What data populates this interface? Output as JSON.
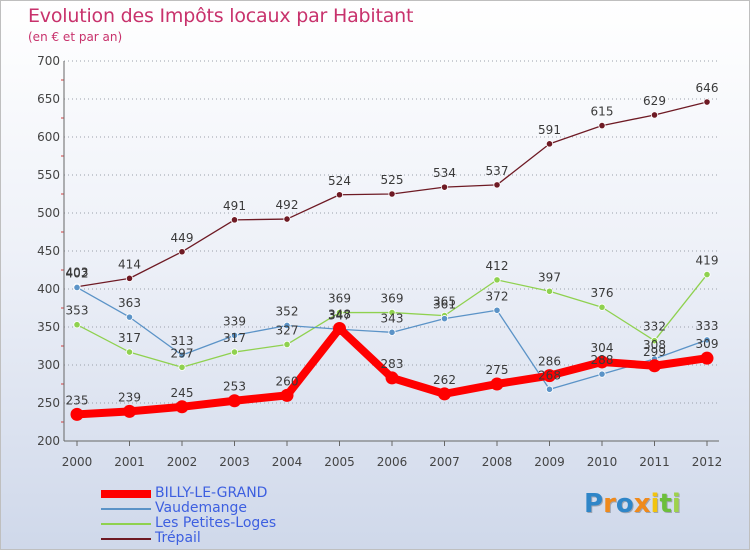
{
  "title": "Evolution des Impôts locaux par Habitant",
  "subtitle": "(en € et par an)",
  "chart_data": {
    "type": "line",
    "title": "Evolution des Impôts locaux par Habitant",
    "subtitle": "(en € et par an)",
    "xlabel": "",
    "ylabel": "",
    "ylim": [
      200,
      700
    ],
    "yticks": [
      "200",
      "250",
      "300",
      "350",
      "400",
      "450",
      "500",
      "550",
      "600",
      "650",
      "700"
    ],
    "categories": [
      "2000",
      "2001",
      "2002",
      "2003",
      "2004",
      "2005",
      "2006",
      "2007",
      "2008",
      "2009",
      "2010",
      "2011",
      "2012"
    ],
    "grid": "horizontal",
    "legend_position": "bottom-left",
    "series": [
      {
        "name": "BILLY-LE-GRAND",
        "color": "#ff0000",
        "values": [
          235,
          239,
          245,
          253,
          260,
          348,
          283,
          262,
          275,
          286,
          304,
          299,
          309
        ]
      },
      {
        "name": "Vaudemange",
        "color": "#5b93c7",
        "values": [
          402,
          363,
          313,
          339,
          352,
          347,
          343,
          361,
          372,
          268,
          288,
          308,
          333
        ]
      },
      {
        "name": "Les Petites-Loges",
        "color": "#8fd14f",
        "values": [
          353,
          317,
          297,
          317,
          327,
          369,
          369,
          365,
          412,
          397,
          376,
          332,
          419
        ]
      },
      {
        "name": "Trépail",
        "color": "#6e1a24",
        "values": [
          403,
          414,
          449,
          491,
          492,
          524,
          525,
          534,
          537,
          591,
          615,
          629,
          646
        ]
      }
    ]
  },
  "logo": {
    "letters": [
      "P",
      "r",
      "o",
      "x",
      "i",
      "t",
      "i"
    ],
    "colors": [
      "#2f86c8",
      "#ef8a1c",
      "#2f86c8",
      "#ef8a1c",
      "#f2c40f",
      "#6cbf3b",
      "#9fd24b"
    ]
  }
}
